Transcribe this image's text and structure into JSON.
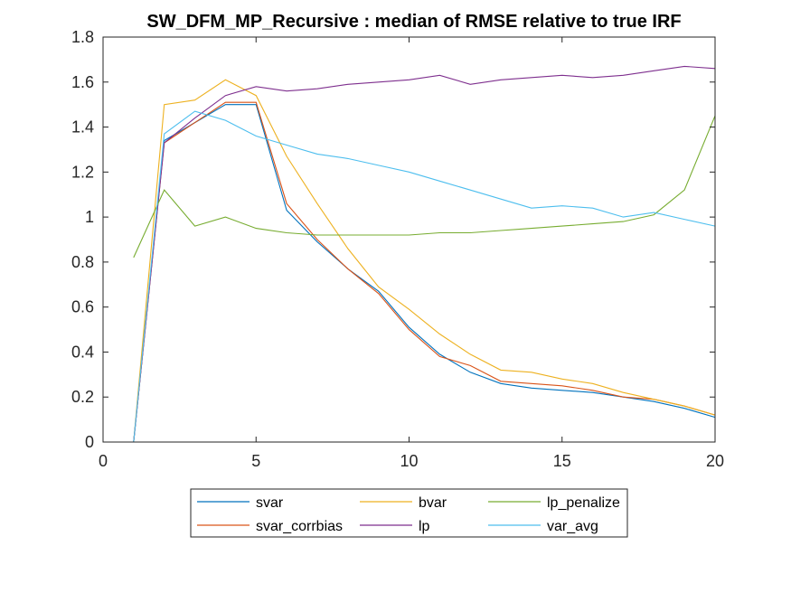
{
  "chart_data": {
    "type": "line",
    "title": "SW_DFM_MP_Recursive : median of RMSE relative to true IRF",
    "xlabel": "",
    "ylabel": "",
    "xlim": [
      0,
      20
    ],
    "ylim": [
      0,
      1.8
    ],
    "xticks": [
      0,
      5,
      10,
      15,
      20
    ],
    "yticks": [
      0,
      0.2,
      0.4,
      0.6,
      0.8,
      1,
      1.2,
      1.4,
      1.6,
      1.8
    ],
    "xtick_labels": [
      "0",
      "5",
      "10",
      "15",
      "20"
    ],
    "ytick_labels": [
      "0",
      "0.2",
      "0.4",
      "0.6",
      "0.8",
      "1",
      "1.2",
      "1.4",
      "1.6",
      "1.8"
    ],
    "grid": false,
    "legend_position": "bottom-outside",
    "x": [
      1,
      2,
      3,
      4,
      5,
      6,
      7,
      8,
      9,
      10,
      11,
      12,
      13,
      14,
      15,
      16,
      17,
      18,
      19,
      20
    ],
    "series": [
      {
        "name": "svar",
        "color": "#0072BD",
        "values": [
          0,
          1.34,
          1.42,
          1.5,
          1.5,
          1.03,
          0.89,
          0.77,
          0.67,
          0.51,
          0.39,
          0.31,
          0.26,
          0.24,
          0.23,
          0.22,
          0.2,
          0.18,
          0.15,
          0.11
        ]
      },
      {
        "name": "svar_corrbias",
        "color": "#D95319",
        "values": [
          0,
          1.33,
          1.42,
          1.51,
          1.51,
          1.06,
          0.9,
          0.77,
          0.66,
          0.5,
          0.38,
          0.34,
          0.27,
          0.26,
          0.25,
          0.23,
          0.2,
          0.19,
          0.16,
          0.12
        ]
      },
      {
        "name": "bvar",
        "color": "#EDB120",
        "values": [
          0,
          1.5,
          1.52,
          1.61,
          1.54,
          1.27,
          1.06,
          0.86,
          0.69,
          0.59,
          0.48,
          0.39,
          0.32,
          0.31,
          0.28,
          0.26,
          0.22,
          0.19,
          0.16,
          0.12
        ]
      },
      {
        "name": "lp",
        "color": "#7E2F8E",
        "values": [
          0,
          1.33,
          1.44,
          1.54,
          1.58,
          1.56,
          1.57,
          1.59,
          1.6,
          1.61,
          1.63,
          1.59,
          1.61,
          1.62,
          1.63,
          1.62,
          1.63,
          1.65,
          1.67,
          1.66
        ]
      },
      {
        "name": "lp_penalize",
        "color": "#77AC30",
        "values": [
          0.82,
          1.12,
          0.96,
          1.0,
          0.95,
          0.93,
          0.92,
          0.92,
          0.92,
          0.92,
          0.93,
          0.93,
          0.94,
          0.95,
          0.96,
          0.97,
          0.98,
          1.01,
          1.12,
          1.45
        ]
      },
      {
        "name": "var_avg",
        "color": "#4DBEEE",
        "values": [
          0,
          1.37,
          1.47,
          1.43,
          1.36,
          1.32,
          1.28,
          1.26,
          1.23,
          1.2,
          1.16,
          1.12,
          1.08,
          1.04,
          1.05,
          1.04,
          1.0,
          1.02,
          0.99,
          0.96
        ]
      }
    ],
    "legend_order": [
      "svar",
      "bvar",
      "lp_penalize",
      "svar_corrbias",
      "lp",
      "var_avg"
    ]
  }
}
